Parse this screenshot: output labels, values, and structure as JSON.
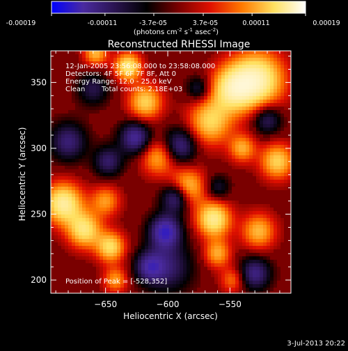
{
  "colorbar": {
    "ticks": [
      "-0.00019",
      "-0.00011",
      "-3.7e-05",
      "3.7e-05",
      "0.00011",
      "0.00019"
    ],
    "tick_values": [
      -0.00019,
      -0.00011,
      -3.7e-05,
      3.7e-05,
      0.00011,
      0.00019
    ],
    "range": [
      -0.00019,
      0.00019
    ],
    "units_prefix": "(photons cm",
    "units_exp1": "-2",
    "units_mid": " s",
    "units_exp2": "-1",
    "units_mid2": " asec",
    "units_exp3": "-2",
    "units_suffix": ")",
    "stops": [
      "#0000ff",
      "#4a2aa0",
      "#2a1450",
      "#000000",
      "#7a0000",
      "#e01000",
      "#ff7a00",
      "#ffe060",
      "#ffffff"
    ]
  },
  "chart_data": {
    "type": "heatmap",
    "title": "Reconstructed RHESSI Image",
    "xlabel": "Heliocentric X (arcsec)",
    "ylabel": "Heliocentric Y (arcsec)",
    "xlim": [
      -694,
      -501
    ],
    "ylim": [
      190,
      374
    ],
    "xticks": [
      -650,
      -600,
      -550
    ],
    "yticks": [
      200,
      250,
      300,
      350
    ],
    "annotations": {
      "time_range": "12-Jan-2005 23:56:08.000 to 23:58:08.000",
      "detectors": "Detectors: 4F 5F 6F 7F 8F, Att 0",
      "energy": "Energy Range: 12.0 - 25.0 keV",
      "clean": "Clean",
      "total_counts": "Total counts: 2.18E+03",
      "peak": "Position of Peak = [-528,352]"
    },
    "blobs": [
      {
        "x": -528,
        "y": 352,
        "v": 1.0,
        "r": 22
      },
      {
        "x": -548,
        "y": 345,
        "v": 0.8,
        "r": 18
      },
      {
        "x": -566,
        "y": 320,
        "v": 0.7,
        "r": 18
      },
      {
        "x": -585,
        "y": 270,
        "v": 0.75,
        "r": 15
      },
      {
        "x": -608,
        "y": 293,
        "v": 0.55,
        "r": 14
      },
      {
        "x": -618,
        "y": 335,
        "v": 0.7,
        "r": 14
      },
      {
        "x": -632,
        "y": 362,
        "v": 0.85,
        "r": 11
      },
      {
        "x": -658,
        "y": 372,
        "v": 0.6,
        "r": 10
      },
      {
        "x": -684,
        "y": 258,
        "v": 0.95,
        "r": 16
      },
      {
        "x": -667,
        "y": 238,
        "v": 0.8,
        "r": 14
      },
      {
        "x": -650,
        "y": 260,
        "v": 0.5,
        "r": 12
      },
      {
        "x": -646,
        "y": 225,
        "v": 0.75,
        "r": 12
      },
      {
        "x": -642,
        "y": 200,
        "v": 0.5,
        "r": 10
      },
      {
        "x": -563,
        "y": 246,
        "v": 0.9,
        "r": 14
      },
      {
        "x": -560,
        "y": 220,
        "v": 0.55,
        "r": 11
      },
      {
        "x": -527,
        "y": 237,
        "v": 0.6,
        "r": 14
      },
      {
        "x": -512,
        "y": 290,
        "v": 0.7,
        "r": 14
      },
      {
        "x": -540,
        "y": 300,
        "v": 0.55,
        "r": 11
      },
      {
        "x": -548,
        "y": 200,
        "v": 0.4,
        "r": 10
      },
      {
        "x": -600,
        "y": 210,
        "v": -0.5,
        "r": 20
      },
      {
        "x": -602,
        "y": 237,
        "v": -0.85,
        "r": 13
      },
      {
        "x": -593,
        "y": 263,
        "v": -0.8,
        "r": 12
      },
      {
        "x": -590,
        "y": 302,
        "v": -0.6,
        "r": 14
      },
      {
        "x": -626,
        "y": 308,
        "v": -0.7,
        "r": 13
      },
      {
        "x": -680,
        "y": 305,
        "v": -0.55,
        "r": 15
      },
      {
        "x": -660,
        "y": 345,
        "v": -0.4,
        "r": 13
      },
      {
        "x": -615,
        "y": 210,
        "v": -0.55,
        "r": 12
      },
      {
        "x": -530,
        "y": 205,
        "v": -0.6,
        "r": 13
      },
      {
        "x": -520,
        "y": 322,
        "v": -0.5,
        "r": 12
      },
      {
        "x": -648,
        "y": 290,
        "v": -0.5,
        "r": 12
      },
      {
        "x": -575,
        "y": 345,
        "v": -0.4,
        "r": 10
      },
      {
        "x": -560,
        "y": 270,
        "v": -0.35,
        "r": 10
      }
    ]
  },
  "footer": {
    "timestamp": "3-Jul-2013 20:22"
  }
}
